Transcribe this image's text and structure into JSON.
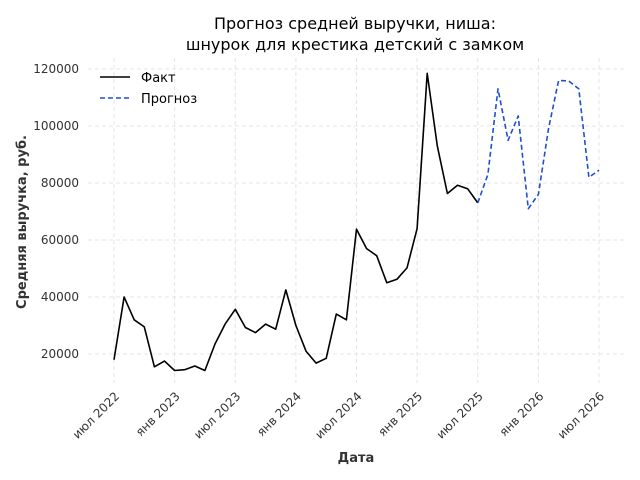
{
  "chart_data": {
    "type": "line",
    "title_line1": "Прогноз средней выручки, ниша:",
    "title_line2": "шнурок для крестика детский с замком",
    "xlabel": "Дата",
    "ylabel": "Средняя выручка, руб.",
    "ylim": [
      8000,
      125000
    ],
    "y_ticks": [
      20000,
      40000,
      60000,
      80000,
      100000,
      120000
    ],
    "x_ticks": [
      {
        "label": "июл 2022",
        "x": "2022-07"
      },
      {
        "label": "янв 2023",
        "x": "2023-01"
      },
      {
        "label": "июл 2023",
        "x": "2023-07"
      },
      {
        "label": "янв 2024",
        "x": "2024-01"
      },
      {
        "label": "июл 2024",
        "x": "2024-07"
      },
      {
        "label": "янв 2025",
        "x": "2025-01"
      },
      {
        "label": "июл 2025",
        "x": "2025-07"
      },
      {
        "label": "янв 2026",
        "x": "2026-01"
      },
      {
        "label": "июл 2026",
        "x": "2026-07"
      }
    ],
    "grid": true,
    "legend_position": "top-left",
    "series": [
      {
        "name": "Факт",
        "color": "#000000",
        "style": "solid",
        "x": [
          "2022-07",
          "2022-08",
          "2022-09",
          "2022-10",
          "2022-11",
          "2022-12",
          "2023-01",
          "2023-02",
          "2023-03",
          "2023-04",
          "2023-05",
          "2023-06",
          "2023-07",
          "2023-08",
          "2023-09",
          "2023-10",
          "2023-11",
          "2023-12",
          "2024-01",
          "2024-02",
          "2024-03",
          "2024-04",
          "2024-05",
          "2024-06",
          "2024-07",
          "2024-08",
          "2024-09",
          "2024-10",
          "2024-11",
          "2024-12",
          "2025-01",
          "2025-02",
          "2025-03",
          "2025-04",
          "2025-05",
          "2025-06",
          "2025-07"
        ],
        "values": [
          18000,
          40000,
          32000,
          29500,
          15500,
          17500,
          14200,
          14500,
          15800,
          14200,
          23500,
          30500,
          35700,
          29300,
          27500,
          30500,
          28700,
          42500,
          30000,
          21000,
          16800,
          18500,
          34000,
          32000,
          63800,
          57000,
          54500,
          45000,
          46200,
          50200,
          64000,
          118500,
          93000,
          76300,
          79200,
          78000,
          73000
        ]
      },
      {
        "name": "Прогноз",
        "color": "#1f4fd1",
        "style": "dashed",
        "x": [
          "2025-07",
          "2025-08",
          "2025-09",
          "2025-10",
          "2025-11",
          "2025-12",
          "2026-01",
          "2026-02",
          "2026-03",
          "2026-04",
          "2026-05",
          "2026-06",
          "2026-07"
        ],
        "values": [
          73000,
          83000,
          113000,
          95000,
          103500,
          71000,
          76000,
          99000,
          116000,
          115800,
          113000,
          82000,
          84500
        ]
      }
    ]
  }
}
